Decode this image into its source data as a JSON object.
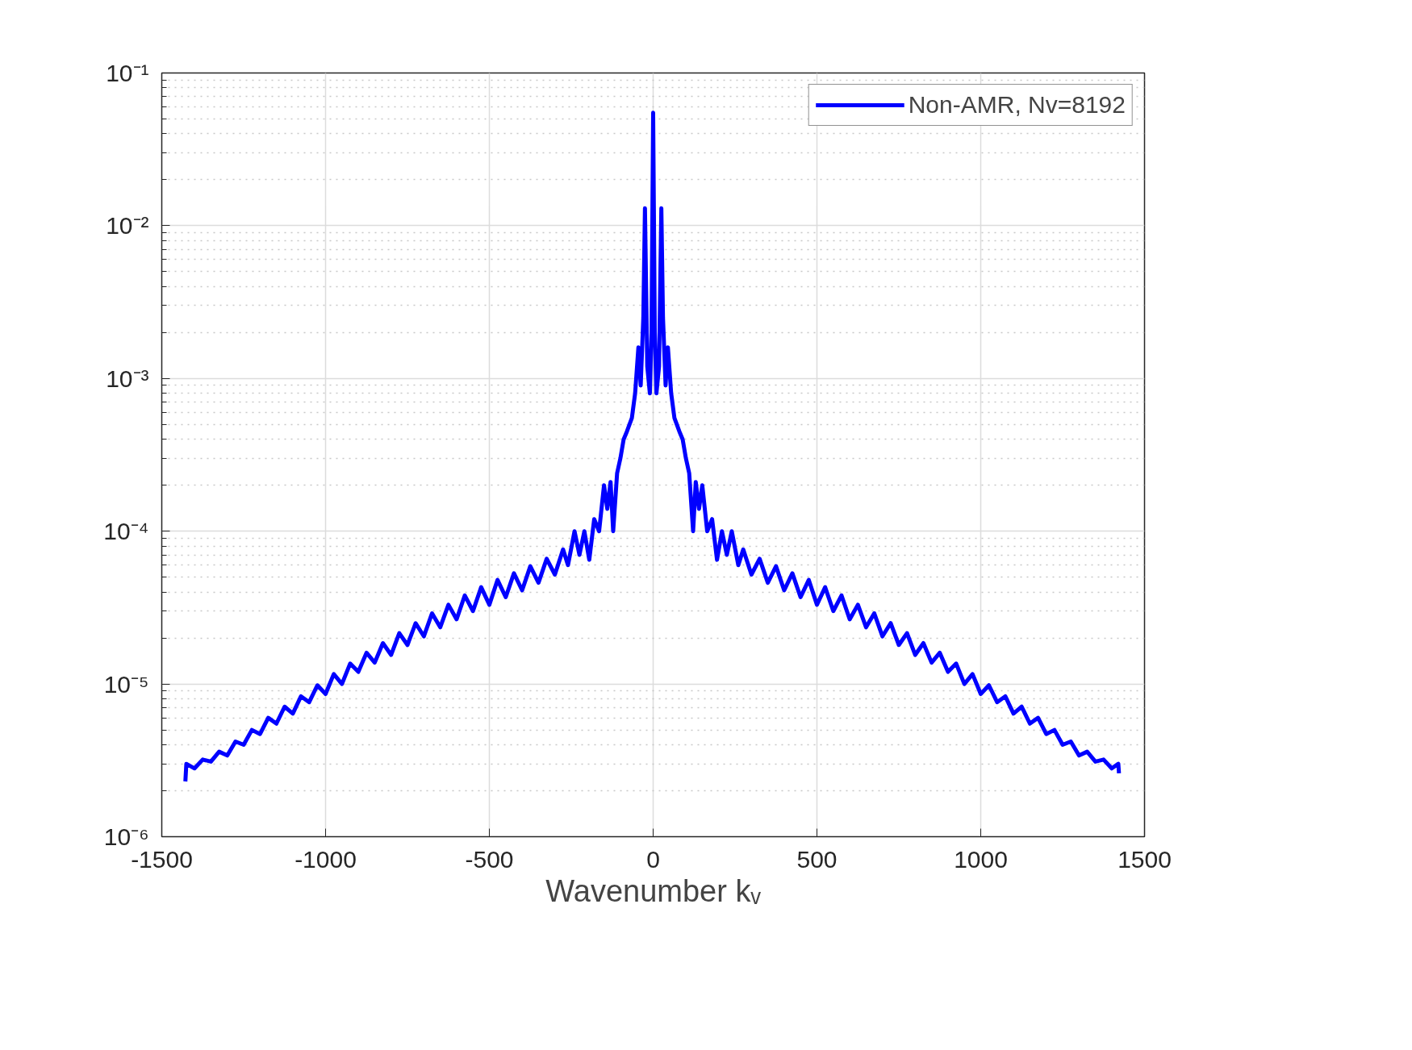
{
  "chart_data": {
    "type": "line",
    "xlabel": "Wavenumber kᵥ",
    "log": "y",
    "grid": true,
    "legend": "top right",
    "line_style": "solid",
    "marker": "none",
    "xlim": [
      -1500,
      1500
    ],
    "xticks": [
      -1500,
      -1000,
      -500,
      0,
      500,
      1000,
      1500
    ],
    "ylim": [
      1e-06,
      0.1
    ],
    "yticks": [
      {
        "value": 1e-06,
        "label": "10⁻⁶"
      },
      {
        "value": 1e-05,
        "label": "10⁻⁵"
      },
      {
        "value": 0.0001,
        "label": "10⁻⁴"
      },
      {
        "value": 0.001,
        "label": "10⁻³"
      },
      {
        "value": 0.01,
        "label": "10⁻²"
      },
      {
        "value": 0.1,
        "label": "10⁻¹"
      }
    ],
    "series": [
      {
        "name": "Non-AMR, Nv=8192",
        "color": "#0000ff",
        "x": [
          -1428,
          -1425,
          -1400,
          -1375,
          -1350,
          -1325,
          -1300,
          -1275,
          -1250,
          -1225,
          -1200,
          -1175,
          -1150,
          -1125,
          -1100,
          -1075,
          -1050,
          -1025,
          -1000,
          -975,
          -950,
          -925,
          -900,
          -875,
          -850,
          -825,
          -800,
          -775,
          -750,
          -725,
          -700,
          -675,
          -650,
          -625,
          -600,
          -575,
          -550,
          -525,
          -500,
          -475,
          -450,
          -425,
          -400,
          -375,
          -350,
          -325,
          -300,
          -275,
          -260,
          -240,
          -225,
          -210,
          -195,
          -180,
          -165,
          -150,
          -140,
          -130,
          -122,
          -110,
          -100,
          -90,
          -80,
          -65,
          -55,
          -45,
          -38,
          -30,
          -25,
          -18,
          -10,
          -5,
          0,
          5,
          10,
          18,
          25,
          30,
          38,
          45,
          55,
          65,
          80,
          90,
          100,
          110,
          122,
          130,
          140,
          150,
          165,
          180,
          195,
          210,
          225,
          240,
          260,
          275,
          300,
          325,
          350,
          375,
          400,
          425,
          450,
          475,
          500,
          525,
          550,
          575,
          600,
          625,
          650,
          675,
          700,
          725,
          750,
          775,
          800,
          825,
          850,
          875,
          900,
          925,
          950,
          975,
          1000,
          1025,
          1050,
          1075,
          1100,
          1125,
          1150,
          1175,
          1200,
          1225,
          1250,
          1275,
          1300,
          1325,
          1350,
          1375,
          1400,
          1420,
          1422
        ],
        "values": [
          2.3e-06,
          3e-06,
          2.8e-06,
          3.2e-06,
          3.1e-06,
          3.6e-06,
          3.4e-06,
          4.2e-06,
          4e-06,
          5e-06,
          4.7e-06,
          6e-06,
          5.5e-06,
          7.1e-06,
          6.4e-06,
          8.3e-06,
          7.6e-06,
          9.8e-06,
          8.6e-06,
          1.16e-05,
          1e-05,
          1.36e-05,
          1.2e-05,
          1.6e-05,
          1.38e-05,
          1.85e-05,
          1.55e-05,
          2.15e-05,
          1.8e-05,
          2.5e-05,
          2.05e-05,
          2.9e-05,
          2.35e-05,
          3.3e-05,
          2.65e-05,
          3.8e-05,
          3e-05,
          4.3e-05,
          3.3e-05,
          4.8e-05,
          3.7e-05,
          5.3e-05,
          4.1e-05,
          5.9e-05,
          4.6e-05,
          6.6e-05,
          5.2e-05,
          7.6e-05,
          6e-05,
          0.0001,
          7e-05,
          0.0001,
          6.5e-05,
          0.00012,
          0.0001,
          0.0002,
          0.00014,
          0.00021,
          0.0001,
          0.00024,
          0.0003,
          0.0004,
          0.00045,
          0.00055,
          0.0008,
          0.0016,
          0.0009,
          0.0025,
          0.013,
          0.0012,
          0.0008,
          0.002,
          0.055,
          0.002,
          0.0008,
          0.0012,
          0.013,
          0.0025,
          0.0009,
          0.0016,
          0.0008,
          0.00055,
          0.00045,
          0.0004,
          0.0003,
          0.00024,
          0.0001,
          0.00021,
          0.00014,
          0.0002,
          0.0001,
          0.00012,
          6.5e-05,
          0.0001,
          7e-05,
          0.0001,
          6e-05,
          7.6e-05,
          5.2e-05,
          6.6e-05,
          4.6e-05,
          5.9e-05,
          4.1e-05,
          5.3e-05,
          3.7e-05,
          4.8e-05,
          3.3e-05,
          4.3e-05,
          3e-05,
          3.8e-05,
          2.65e-05,
          3.3e-05,
          2.35e-05,
          2.9e-05,
          2.05e-05,
          2.5e-05,
          1.8e-05,
          2.15e-05,
          1.55e-05,
          1.85e-05,
          1.38e-05,
          1.6e-05,
          1.2e-05,
          1.36e-05,
          1e-05,
          1.16e-05,
          8.6e-06,
          9.8e-06,
          7.6e-06,
          8.3e-06,
          6.4e-06,
          7.1e-06,
          5.5e-06,
          6e-06,
          4.7e-06,
          5e-06,
          4e-06,
          4.2e-06,
          3.4e-06,
          3.6e-06,
          3.1e-06,
          3.2e-06,
          2.8e-06,
          3e-06,
          2.6e-06
        ]
      }
    ]
  }
}
